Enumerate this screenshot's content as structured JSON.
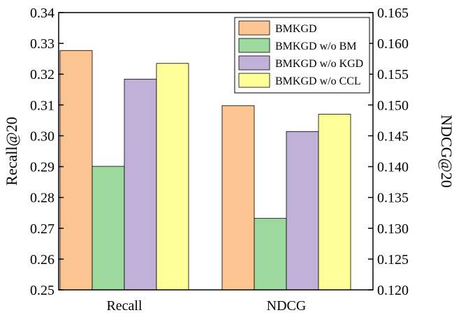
{
  "chart_data": {
    "type": "bar",
    "categories": [
      "Recall",
      "NDCG"
    ],
    "series": [
      {
        "name": "BMKGD",
        "values": [
          0.3277,
          0.1499
        ],
        "color": "#FCC490"
      },
      {
        "name": "BMKGD w/o BM",
        "values": [
          0.2901,
          0.1316
        ],
        "color": "#9DD89D"
      },
      {
        "name": "BMKGD w/o KGD",
        "values": [
          0.3184,
          0.1457
        ],
        "color": "#C1B1D8"
      },
      {
        "name": "BMKGD w/o CCL",
        "values": [
          0.3235,
          0.1485
        ],
        "color": "#FFFF99"
      }
    ],
    "axes": {
      "left": {
        "label": "Recall@20",
        "range": [
          0.25,
          0.34
        ],
        "ticks": [
          "0.25",
          "0.26",
          "0.27",
          "0.28",
          "0.29",
          "0.30",
          "0.31",
          "0.32",
          "0.33",
          "0.34"
        ]
      },
      "right": {
        "label": "NDCG@20",
        "range": [
          0.12,
          0.165
        ],
        "ticks": [
          "0.120",
          "0.125",
          "0.130",
          "0.135",
          "0.140",
          "0.145",
          "0.150",
          "0.155",
          "0.160",
          "0.165"
        ]
      }
    },
    "category_axis": {
      "Recall": "left",
      "NDCG": "right"
    },
    "legend_position": "top-right",
    "grid": false
  }
}
